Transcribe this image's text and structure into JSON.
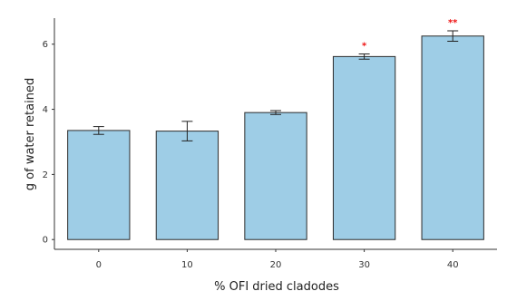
{
  "chart_data": {
    "type": "bar",
    "title": "",
    "xlabel": "% OFI dried cladodes",
    "ylabel": "g of water retained",
    "categories": [
      "0",
      "10",
      "20",
      "30",
      "40"
    ],
    "values": [
      3.35,
      3.33,
      3.9,
      5.62,
      6.25
    ],
    "errors": [
      0.12,
      0.3,
      0.06,
      0.08,
      0.16
    ],
    "significance": [
      "",
      "",
      "",
      "*",
      "**"
    ],
    "significance_color": "#ee1111",
    "ylim": [
      -0.3,
      6.8
    ],
    "yticks": [
      0,
      2,
      4,
      6
    ],
    "grid": false,
    "bar_color": "#9ecde6",
    "bar_edge_color": "#2b2b2b"
  }
}
